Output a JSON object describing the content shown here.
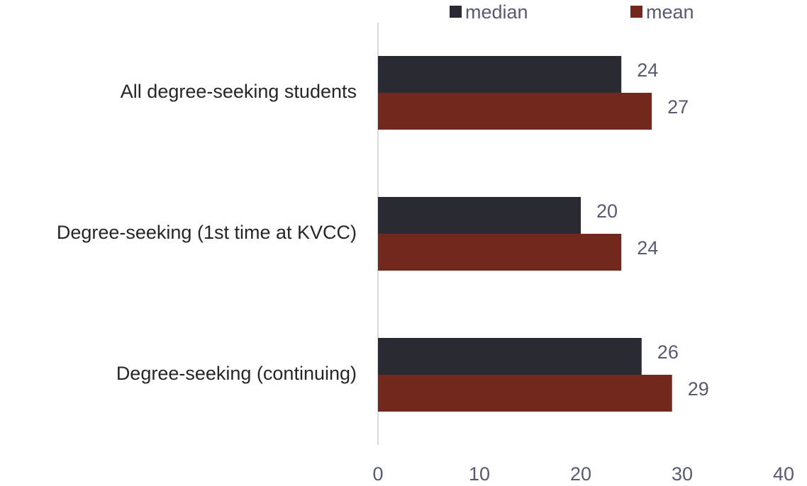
{
  "chart_data": {
    "type": "bar",
    "orientation": "horizontal",
    "categories": [
      "All degree-seeking students",
      "Degree-seeking (1st time at KVCC)",
      "Degree-seeking (continuing)"
    ],
    "series": [
      {
        "name": "median",
        "values": [
          24,
          20,
          26
        ],
        "color": "#2a2a33"
      },
      {
        "name": "mean",
        "values": [
          27,
          24,
          29
        ],
        "color": "#72281c"
      }
    ],
    "xlim": [
      0,
      40
    ],
    "xticks": [
      0,
      10,
      20,
      30,
      40
    ],
    "title": "",
    "xlabel": "",
    "ylabel": "",
    "grid": false,
    "legend_position": "top",
    "axis_line_color": "#d9d9d9"
  }
}
